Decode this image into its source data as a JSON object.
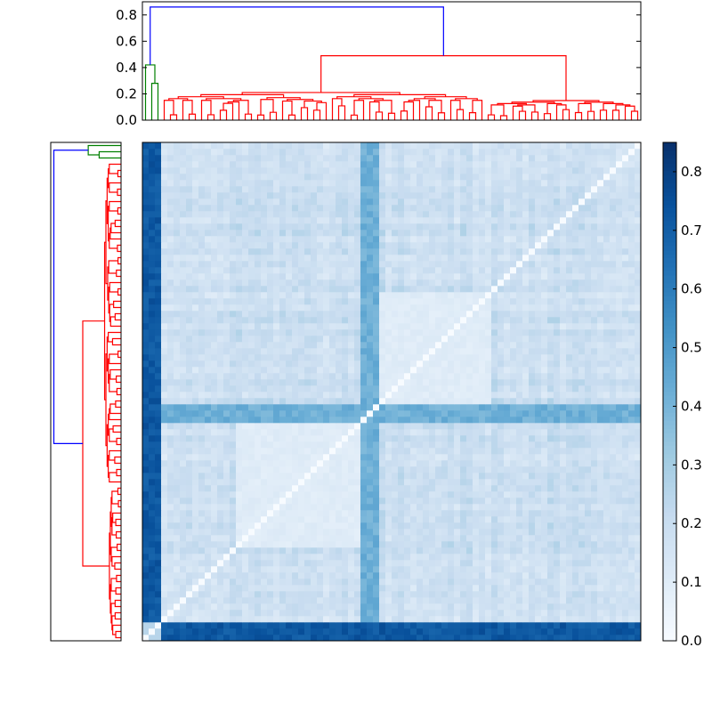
{
  "chart_data": [
    {
      "type": "dendrogram",
      "orientation": "top",
      "ylim": [
        0,
        0.9
      ],
      "yticks": [
        0.0,
        0.2,
        0.4,
        0.6,
        0.8
      ],
      "ytick_labels": [
        "0.0",
        "0.2",
        "0.4",
        "0.6",
        "0.8"
      ],
      "leaf_count": 80,
      "colors": {
        "root": "#0000ff",
        "cluster_a": "#008000",
        "cluster_b": "#ff0000"
      },
      "clusters": [
        {
          "color": "cluster_a",
          "leaves": 3,
          "height": 0.42
        },
        {
          "color": "cluster_b",
          "leaves": 77,
          "height": 0.49
        }
      ],
      "root_height": 0.86,
      "internal_heights": [
        0.42,
        0.28,
        0.86,
        0.49,
        0.33,
        0.27,
        0.23,
        0.39,
        0.36,
        0.23,
        0.31,
        0.25,
        0.19,
        0.24,
        0.2,
        0.23,
        0.17
      ]
    },
    {
      "type": "dendrogram",
      "orientation": "left",
      "leaf_count": 80,
      "root_height": 0.86,
      "colors": {
        "root": "#0000ff",
        "cluster_a": "#008000",
        "cluster_b": "#ff0000"
      }
    },
    {
      "type": "heatmap",
      "rows": 80,
      "cols": 80,
      "colormap": "Blues",
      "vmin": 0.0,
      "vmax": 0.85,
      "diagonal": 0.0,
      "structure": {
        "outlier_indices": [
          0,
          1,
          2
        ],
        "dark_band_indices": [
          35,
          36,
          37
        ],
        "light_block_ranges": [
          [
            15,
            34
          ],
          [
            38,
            55
          ]
        ],
        "outlier_distance": 0.72,
        "band_distance": 0.42,
        "typical_distance": 0.18
      }
    },
    {
      "type": "colorbar",
      "vmin": 0.0,
      "vmax": 0.85,
      "ticks": [
        0.0,
        0.1,
        0.2,
        0.3,
        0.4,
        0.5,
        0.6,
        0.7,
        0.8
      ],
      "tick_labels": [
        "0.0",
        "0.1",
        "0.2",
        "0.3",
        "0.4",
        "0.5",
        "0.6",
        "0.7",
        "0.8"
      ]
    }
  ]
}
